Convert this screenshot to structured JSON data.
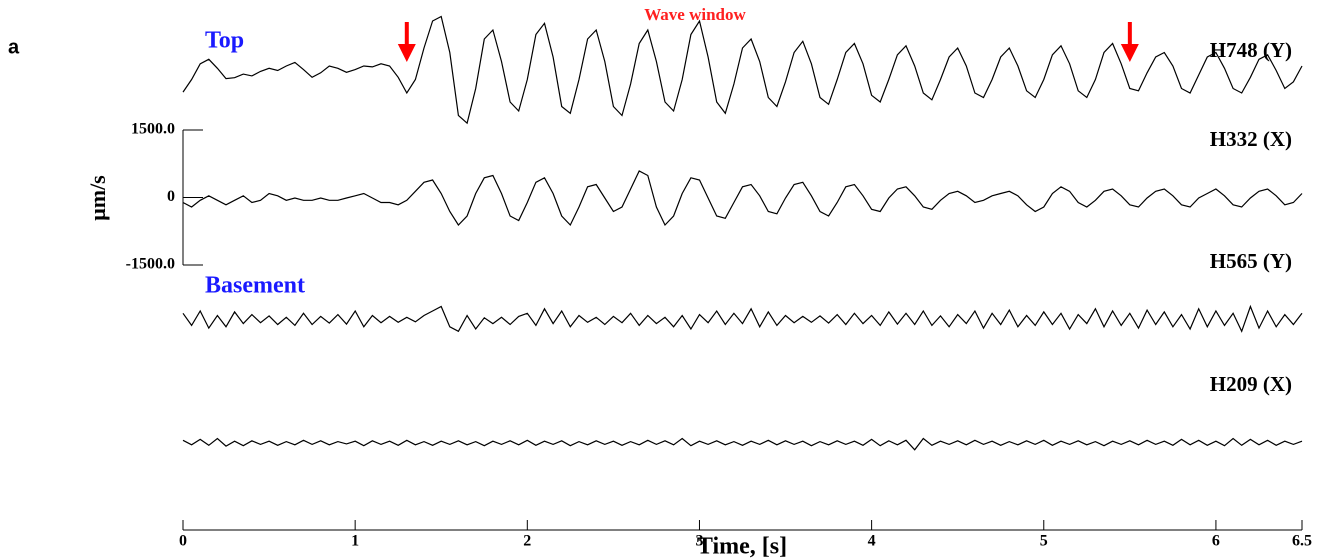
{
  "panel_label": "a",
  "chart_data": {
    "type": "line",
    "title": "Wave window",
    "group_labels": [
      "Top",
      "Basement"
    ],
    "ylabel": "μm/s",
    "xlabel": "Time, [s]",
    "xlim": [
      0,
      6.5
    ],
    "xticks": [
      0,
      1,
      2,
      3,
      4,
      5,
      6,
      6.5
    ],
    "ylim": [
      -1500,
      1500
    ],
    "yticks": [
      {
        "value": 1500,
        "label": "1500.0"
      },
      0,
      {
        "value": -1500,
        "label": "-1500.0"
      }
    ],
    "window_markers": [
      1.3,
      5.5
    ],
    "marker_color": "#ff0000",
    "x": [
      0,
      0.05,
      0.1,
      0.15,
      0.2,
      0.25,
      0.3,
      0.35,
      0.4,
      0.45,
      0.5,
      0.55,
      0.6,
      0.65,
      0.7,
      0.75,
      0.8,
      0.85,
      0.9,
      0.95,
      1,
      1.05,
      1.1,
      1.15,
      1.2,
      1.25,
      1.3,
      1.35,
      1.4,
      1.45,
      1.5,
      1.55,
      1.6,
      1.65,
      1.7,
      1.75,
      1.8,
      1.85,
      1.9,
      1.95,
      2,
      2.05,
      2.1,
      2.15,
      2.2,
      2.25,
      2.3,
      2.35,
      2.4,
      2.45,
      2.5,
      2.55,
      2.6,
      2.65,
      2.7,
      2.75,
      2.8,
      2.85,
      2.9,
      2.95,
      3,
      3.05,
      3.1,
      3.15,
      3.2,
      3.25,
      3.3,
      3.35,
      3.4,
      3.45,
      3.5,
      3.55,
      3.6,
      3.65,
      3.7,
      3.75,
      3.8,
      3.85,
      3.9,
      3.95,
      4,
      4.05,
      4.1,
      4.15,
      4.2,
      4.25,
      4.3,
      4.35,
      4.4,
      4.45,
      4.5,
      4.55,
      4.6,
      4.65,
      4.7,
      4.75,
      4.8,
      4.85,
      4.9,
      4.95,
      5,
      5.05,
      5.1,
      5.15,
      5.2,
      5.25,
      5.3,
      5.35,
      5.4,
      5.45,
      5.5,
      5.55,
      5.6,
      5.65,
      5.7,
      5.75,
      5.8,
      5.85,
      5.9,
      5.95,
      6,
      6.05,
      6.1,
      6.15,
      6.2,
      6.25,
      6.3,
      6.35,
      6.4,
      6.45,
      6.5
    ],
    "series": [
      {
        "name": "H748 (Y)",
        "color": "#000000",
        "values": [
          -380,
          -100,
          250,
          350,
          150,
          -80,
          -60,
          20,
          -20,
          80,
          150,
          100,
          200,
          280,
          120,
          -50,
          50,
          200,
          150,
          60,
          120,
          200,
          180,
          250,
          200,
          -50,
          -400,
          -100,
          600,
          1200,
          1300,
          500,
          -900,
          -1070,
          -300,
          800,
          1000,
          300,
          -600,
          -800,
          -100,
          900,
          1150,
          400,
          -700,
          -850,
          -100,
          800,
          1000,
          300,
          -700,
          -900,
          -200,
          700,
          1000,
          300,
          -600,
          -800,
          -100,
          900,
          1200,
          400,
          -600,
          -850,
          -200,
          600,
          800,
          300,
          -500,
          -700,
          -150,
          500,
          750,
          250,
          -500,
          -650,
          -100,
          500,
          700,
          250,
          -450,
          -600,
          -100,
          450,
          650,
          200,
          -400,
          -550,
          -100,
          400,
          600,
          200,
          -400,
          -500,
          -100,
          400,
          600,
          200,
          -350,
          -500,
          -100,
          450,
          650,
          250,
          -350,
          -500,
          -100,
          500,
          700,
          250,
          -300,
          -350,
          50,
          400,
          500,
          200,
          -300,
          -400,
          0,
          400,
          500,
          150,
          -300,
          -400,
          -50,
          350,
          450,
          100,
          -300,
          -150,
          200
        ]
      },
      {
        "name": "H332 (X)",
        "color": "#000000",
        "values": [
          -100,
          -200,
          -50,
          50,
          -50,
          -150,
          -50,
          50,
          -100,
          -50,
          100,
          50,
          -50,
          0,
          -50,
          -50,
          0,
          -50,
          -50,
          0,
          50,
          100,
          0,
          -100,
          -100,
          -150,
          -50,
          150,
          350,
          400,
          100,
          -300,
          -600,
          -400,
          100,
          450,
          500,
          100,
          -400,
          -500,
          -100,
          350,
          450,
          100,
          -400,
          -600,
          -200,
          250,
          300,
          0,
          -300,
          -200,
          200,
          600,
          500,
          -200,
          -600,
          -400,
          100,
          450,
          400,
          0,
          -400,
          -450,
          -100,
          250,
          300,
          50,
          -300,
          -350,
          0,
          300,
          350,
          50,
          -300,
          -400,
          -100,
          250,
          300,
          50,
          -250,
          -300,
          0,
          200,
          250,
          50,
          -200,
          -250,
          -50,
          100,
          150,
          50,
          -100,
          -50,
          50,
          100,
          150,
          50,
          -150,
          -300,
          -200,
          100,
          250,
          150,
          -100,
          -200,
          -50,
          150,
          200,
          50,
          -150,
          -200,
          0,
          150,
          200,
          50,
          -150,
          -200,
          0,
          100,
          200,
          50,
          -150,
          -200,
          0,
          150,
          200,
          50,
          -150,
          -100,
          100
        ]
      },
      {
        "name": "H565 (Y)",
        "color": "#000000",
        "values": [
          150,
          -120,
          200,
          -180,
          100,
          -150,
          180,
          -80,
          120,
          -60,
          90,
          -100,
          60,
          -120,
          150,
          -100,
          80,
          -70,
          120,
          -90,
          200,
          -150,
          100,
          -60,
          80,
          -50,
          60,
          -40,
          100,
          200,
          300,
          -150,
          -250,
          100,
          -200,
          50,
          -80,
          60,
          -100,
          80,
          150,
          -120,
          250,
          -80,
          200,
          -150,
          100,
          -50,
          60,
          -100,
          80,
          -60,
          150,
          -120,
          100,
          -80,
          60,
          -150,
          100,
          -200,
          120,
          -60,
          200,
          -100,
          150,
          -80,
          250,
          -150,
          180,
          -120,
          100,
          -60,
          80,
          -50,
          90,
          -70,
          120,
          -100,
          150,
          -80,
          100,
          -120,
          180,
          -90,
          150,
          -100,
          200,
          -120,
          90,
          -150,
          120,
          -80,
          200,
          -180,
          150,
          -100,
          220,
          -150,
          100,
          -120,
          180,
          -100,
          150,
          -200,
          120,
          -80,
          250,
          -150,
          200,
          -120,
          150,
          -180,
          220,
          -100,
          180,
          -150,
          120,
          -200,
          250,
          -150,
          200,
          -120,
          150,
          -250,
          300,
          -180,
          200,
          -150,
          120,
          -100,
          150
        ]
      },
      {
        "name": "H209 (X)",
        "color": "#000000",
        "values": [
          60,
          -40,
          80,
          -50,
          100,
          -70,
          40,
          -60,
          50,
          -30,
          40,
          -50,
          30,
          -40,
          60,
          -30,
          50,
          -40,
          30,
          -20,
          40,
          -60,
          50,
          -30,
          40,
          -50,
          60,
          -40,
          30,
          -50,
          40,
          -30,
          50,
          -40,
          30,
          -60,
          40,
          -30,
          50,
          -40,
          60,
          -50,
          40,
          -30,
          50,
          -60,
          30,
          -40,
          50,
          -30,
          40,
          -50,
          30,
          -40,
          60,
          -30,
          50,
          -40,
          100,
          -60,
          40,
          -30,
          50,
          -40,
          30,
          -50,
          40,
          -30,
          60,
          -40,
          50,
          -30,
          40,
          -60,
          30,
          -40,
          50,
          -30,
          40,
          -50,
          80,
          -60,
          50,
          -40,
          60,
          -150,
          100,
          -50,
          40,
          -30,
          50,
          -40,
          60,
          -30,
          40,
          -50,
          30,
          -40,
          50,
          -30,
          60,
          -50,
          40,
          -30,
          50,
          -40,
          30,
          -60,
          40,
          -30,
          50,
          -40,
          60,
          -30,
          40,
          -50,
          80,
          -40,
          60,
          -50,
          40,
          -60,
          100,
          -50,
          80,
          -40,
          60,
          -50,
          40,
          -30,
          40
        ]
      }
    ]
  }
}
